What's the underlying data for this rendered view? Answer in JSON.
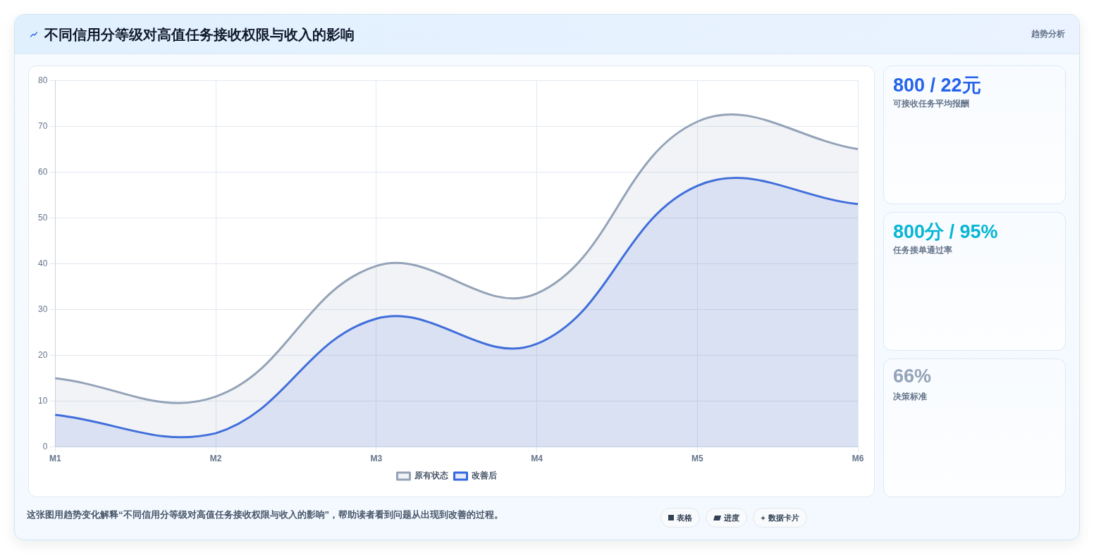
{
  "chart_data": [
    {
      "type": "area",
      "title": "不同信用分等级对高值任务接收权限与收入的影响",
      "categories": [
        "M1",
        "M2",
        "M3",
        "M4",
        "M5",
        "M6"
      ],
      "series": [
        {
          "name": "原有状态",
          "color": "#94a3b8",
          "values": [
            15,
            11,
            39.5,
            33.5,
            71,
            65
          ]
        },
        {
          "name": "改善后",
          "color": "#3467e0",
          "values": [
            7,
            3,
            28,
            22.5,
            57,
            53
          ]
        }
      ],
      "ylim": [
        0,
        80
      ],
      "yticks": [
        0,
        10,
        20,
        30,
        40,
        50,
        60,
        70,
        80
      ],
      "grid": true,
      "legend": "bottom",
      "annotations": [
        "这张图用趋势变化解释“不同信用分等级对高值任务接收权限与收入的影响”，帮助读者看到问题从出现到改善的过程。",
        "表格",
        "进度",
        "数据卡片"
      ]
    },
    {
      "type": "other",
      "title": "趋势分析",
      "annotations": [
        "800 / 22元",
        "可接收任务平均报酬",
        "800分 / 95%",
        "任务接单通过率",
        "66%",
        "决策标准"
      ],
      "colors": [
        "#2563eb",
        "#06b6d4",
        "#94a3b8"
      ]
    }
  ]
}
